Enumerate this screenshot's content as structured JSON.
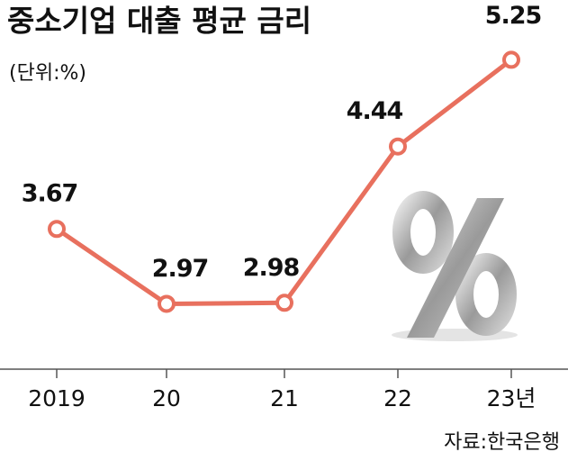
{
  "chart_data": {
    "type": "line",
    "title": "중소기업 대출 평균 금리",
    "subtitle": "(단위:%)",
    "categories": [
      "2019",
      "20",
      "21",
      "22",
      "23년"
    ],
    "values": [
      3.67,
      2.97,
      2.98,
      4.44,
      5.25
    ],
    "color": "#e8705e",
    "ylim": [
      2.36,
      5.8
    ],
    "source": "자료:한국은행"
  }
}
